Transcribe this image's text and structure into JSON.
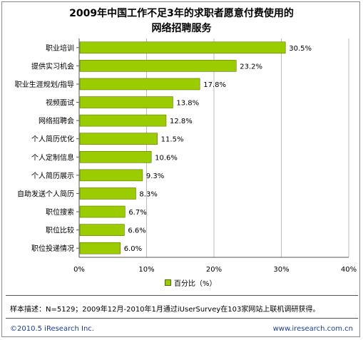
{
  "chart_data": {
    "type": "bar",
    "orientation": "horizontal",
    "title_line1": "2009年中国工作不足3年的求职者愿意付费使用的",
    "title_line2": "网络招聘服务",
    "categories": [
      "职业培训",
      "提供实习机会",
      "职业生涯规划/指导",
      "视频面试",
      "网络招聘会",
      "个人简历优化",
      "个人定制信息",
      "个人简历展示",
      "自助发送个人简历",
      "职位搜索",
      "职位比较",
      "职位投递情况"
    ],
    "values": [
      30.5,
      23.2,
      17.8,
      13.8,
      12.8,
      11.5,
      10.6,
      9.3,
      8.3,
      6.7,
      6.6,
      6.0
    ],
    "value_labels": [
      "30.5%",
      "23.2%",
      "17.8%",
      "13.8%",
      "12.8%",
      "11.5%",
      "10.6%",
      "9.3%",
      "8.3%",
      "6.7%",
      "6.6%",
      "6.0%"
    ],
    "xlim": [
      0,
      40
    ],
    "xticks": [
      "0%",
      "10%",
      "20%",
      "30%",
      "40%"
    ],
    "grid": true,
    "legend_position": "bottom",
    "series": [
      {
        "name": "百分比（%）",
        "color": "#9bcc00"
      }
    ]
  },
  "note": "样本描述：N=5129；2009年12月-2010年1月通过iUserSurvey在103家网站上联机调研获得。",
  "footer": {
    "left": "©2010.5 iResearch Inc.",
    "right": "www.iresearch.com.cn"
  }
}
